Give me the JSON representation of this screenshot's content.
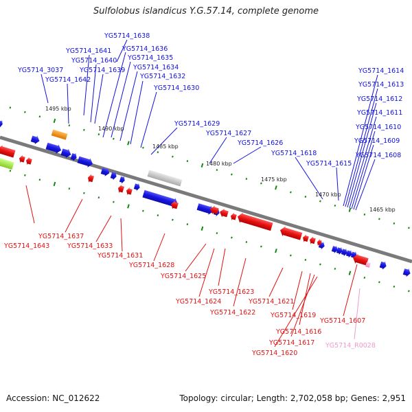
{
  "title": "Sulfolobus islandicus Y.G.57.14, complete genome",
  "footer": {
    "accession": "Accession: NC_012622",
    "summary": "Topology: circular; Length: 2,702,058 bp; Genes: 2,951"
  },
  "colors": {
    "forward": "#1010dd",
    "reverse": "#e01010",
    "rna": "#ee99cc",
    "backbone": "#808080",
    "tick": "#118811",
    "orange_gene": "#ee8800",
    "green_gene": "#99dd33",
    "gray_gene": "#bbbbbb"
  },
  "scale_labels": [
    "1495 kbp",
    "1490 kbp",
    "1485 kbp",
    "1480 kbp",
    "1475 kbp",
    "1470 kbp",
    "1465 kbp"
  ],
  "forward_labels": [
    "YG5714_1638",
    "YG5714_1641",
    "YG5714_1636",
    "YG5714_1640",
    "YG5714_1635",
    "YG5714_3037",
    "YG5714_1639",
    "YG5714_1634",
    "YG5714_1642",
    "YG5714_1632",
    "YG5714_1630",
    "YG5714_1629",
    "YG5714_1627",
    "YG5714_1626",
    "YG5714_1618",
    "YG5714_1615",
    "YG5714_1614",
    "YG5714_1613",
    "YG5714_1612",
    "YG5714_1611",
    "YG5714_1610",
    "YG5714_1609",
    "YG5714_1608"
  ],
  "reverse_labels": [
    "YG5714_1643",
    "YG5714_1637",
    "YG5714_1633",
    "YG5714_1631",
    "YG5714_1628",
    "YG5714_1625",
    "YG5714_1623",
    "YG5714_1624",
    "YG5714_1622",
    "YG5714_1621",
    "YG5714_1619",
    "YG5714_1616",
    "YG5714_1617",
    "YG5714_1620",
    "YG5714_1607"
  ],
  "rna_labels": [
    "YG5714_R0028"
  ]
}
